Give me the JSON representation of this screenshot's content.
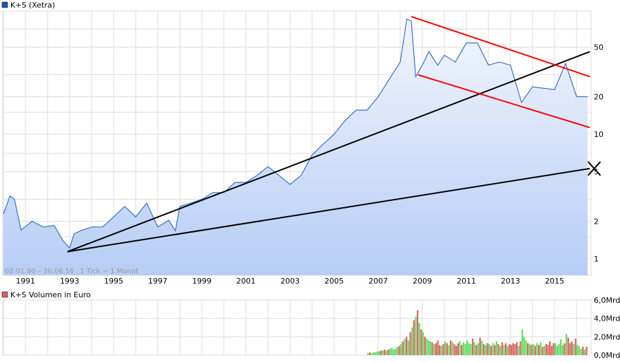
{
  "chart_data": [
    {
      "type": "area",
      "title": "K+S (Xetra)",
      "legend_color": "#1f4fb5",
      "line_color": "#3a6cc8",
      "date_range": "02.01.90 – 30.06.16",
      "tick_note": "1 Tick = 1 Monat",
      "y_scale": "log",
      "ylim": [
        0.8,
        100
      ],
      "y_ticks": [
        1,
        2,
        5,
        10,
        20,
        50
      ],
      "y_tick_labels": [
        "1",
        "2",
        "5",
        "10",
        "20",
        "50"
      ],
      "x_ticks": [
        "1991",
        "1993",
        "1995",
        "1997",
        "1999",
        "2001",
        "2003",
        "2005",
        "2007",
        "2009",
        "2011",
        "2013",
        "2015"
      ],
      "xlim": [
        1990.0,
        2016.6
      ],
      "grid": true,
      "series": {
        "x": [
          1990.0,
          1990.3,
          1990.5,
          1990.8,
          1991.3,
          1991.8,
          1992.3,
          1992.7,
          1993.0,
          1993.2,
          1993.5,
          1994.0,
          1994.5,
          1995.0,
          1995.5,
          1996.0,
          1996.5,
          1997.0,
          1997.5,
          1997.8,
          1998.0,
          1998.5,
          1999.0,
          1999.5,
          2000.0,
          2000.5,
          2001.0,
          2001.5,
          2002.0,
          2002.5,
          2003.0,
          2003.5,
          2004.0,
          2004.5,
          2005.0,
          2005.5,
          2006.0,
          2006.5,
          2007.0,
          2007.5,
          2008.0,
          2008.3,
          2008.5,
          2008.7,
          2009.0,
          2009.3,
          2009.7,
          2010.0,
          2010.5,
          2011.0,
          2011.5,
          2012.0,
          2012.5,
          2013.0,
          2013.5,
          2014.0,
          2014.5,
          2015.0,
          2015.5,
          2016.0,
          2016.5
        ],
        "y": [
          2.3,
          3.2,
          3.0,
          1.7,
          2.0,
          1.8,
          1.85,
          1.4,
          1.22,
          1.58,
          1.68,
          1.8,
          1.8,
          2.17,
          2.63,
          2.17,
          2.8,
          1.8,
          2.04,
          1.68,
          2.63,
          2.8,
          3.0,
          3.4,
          3.4,
          4.1,
          4.1,
          4.66,
          5.5,
          4.66,
          3.95,
          4.66,
          6.8,
          8.3,
          10,
          12.9,
          15.6,
          15.6,
          20,
          27.6,
          38,
          84,
          81,
          29,
          35.8,
          46,
          35.8,
          43,
          38,
          54,
          54,
          35.8,
          38,
          35.8,
          18,
          24,
          23.4,
          22.8,
          37,
          20,
          20
        ]
      },
      "trend_lines": [
        {
          "color": "#000000",
          "from": [
            1992.9,
            1.14
          ],
          "to": [
            2016.6,
            46
          ]
        },
        {
          "color": "#000000",
          "from": [
            1992.9,
            1.14
          ],
          "to": [
            2016.6,
            5.3
          ]
        },
        {
          "color": "#ff0000",
          "from": [
            2008.5,
            88
          ],
          "to": [
            2016.6,
            29
          ]
        },
        {
          "color": "#ff0000",
          "from": [
            2008.8,
            30
          ],
          "to": [
            2016.6,
            11.3
          ]
        }
      ],
      "marker": {
        "symbol": "x",
        "at": [
          2016.8,
          5.3
        ]
      }
    },
    {
      "type": "bar",
      "title": "K+S Volumen in Euro",
      "legend_color": "#d96060",
      "up_color": "#66dd66",
      "down_color": "#dd6666",
      "ylim": [
        0,
        6
      ],
      "y_ticks": [
        0,
        2,
        4,
        6
      ],
      "y_tick_labels": [
        "0,0Mrd",
        "2,0Mrd",
        "4,0Mrd",
        "6,0Mrd"
      ],
      "x_start": 2006.5,
      "x_step_months": 1,
      "values": [
        0.2,
        0.3,
        0.2,
        0.3,
        0.3,
        0.4,
        0.4,
        0.5,
        0.5,
        0.6,
        0.5,
        0.6,
        0.7,
        0.8,
        0.6,
        0.7,
        0.9,
        1.0,
        1.2,
        1.5,
        1.8,
        2.0,
        1.6,
        2.5,
        3.0,
        3.8,
        4.2,
        4.9,
        3.5,
        2.8,
        2.5,
        2.0,
        1.8,
        1.6,
        1.5,
        1.4,
        1.2,
        1.3,
        1.6,
        1.1,
        1.0,
        1.2,
        1.5,
        1.3,
        1.1,
        1.6,
        1.4,
        1.2,
        1.0,
        1.3,
        1.5,
        1.1,
        1.4,
        1.2,
        1.6,
        1.3,
        1.2,
        1.8,
        1.4,
        1.1,
        1.3,
        1.9,
        1.6,
        1.2,
        1.1,
        1.3,
        1.2,
        1.0,
        1.3,
        1.1,
        1.5,
        1.2,
        1.0,
        1.4,
        1.1,
        1.3,
        1.0,
        1.2,
        1.1,
        1.3,
        1.2,
        1.4,
        1.0,
        1.5,
        2.8,
        2.0,
        1.6,
        1.3,
        1.2,
        1.1,
        1.2,
        1.0,
        1.3,
        1.1,
        1.4,
        0.9,
        1.0,
        1.2,
        1.1,
        1.5,
        1.0,
        1.3,
        1.3,
        1.0,
        1.2,
        1.7,
        1.1,
        1.3,
        2.3,
        1.9,
        1.3,
        1.5,
        1.2,
        1.8,
        1.1,
        1.0,
        0.7,
        0.9,
        0.6,
        0.9
      ]
    }
  ]
}
